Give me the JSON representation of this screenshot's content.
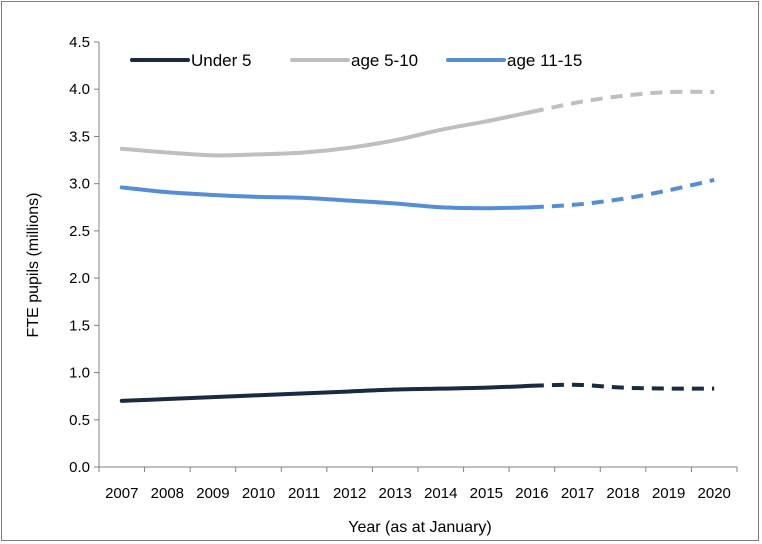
{
  "chart_data": {
    "type": "line",
    "title": "",
    "xlabel": "Year (as at January)",
    "ylabel": "FTE pupils (millions)",
    "ylim": [
      0,
      4.5
    ],
    "y_ticks": [
      "0.0",
      "0.5",
      "1.0",
      "1.5",
      "2.0",
      "2.5",
      "3.0",
      "3.5",
      "4.0",
      "4.5"
    ],
    "categories": [
      "2007",
      "2008",
      "2009",
      "2010",
      "2011",
      "2012",
      "2013",
      "2014",
      "2015",
      "2016",
      "2017",
      "2018",
      "2019",
      "2020"
    ],
    "projection_from": "2016",
    "grid": false,
    "legend_position": "top",
    "series": [
      {
        "name": "Under 5",
        "color": "#1a2a40",
        "values": [
          0.7,
          0.72,
          0.74,
          0.76,
          0.78,
          0.8,
          0.82,
          0.83,
          0.84,
          0.86,
          0.87,
          0.84,
          0.83,
          0.83
        ]
      },
      {
        "name": "age 5-10",
        "color": "#bfbfbf",
        "values": [
          3.37,
          3.33,
          3.3,
          3.31,
          3.33,
          3.38,
          3.46,
          3.57,
          3.66,
          3.76,
          3.86,
          3.93,
          3.97,
          3.97
        ]
      },
      {
        "name": "age 11-15",
        "color": "#558ed5",
        "values": [
          2.96,
          2.91,
          2.88,
          2.86,
          2.85,
          2.82,
          2.79,
          2.75,
          2.74,
          2.75,
          2.78,
          2.84,
          2.93,
          3.04
        ]
      }
    ]
  }
}
